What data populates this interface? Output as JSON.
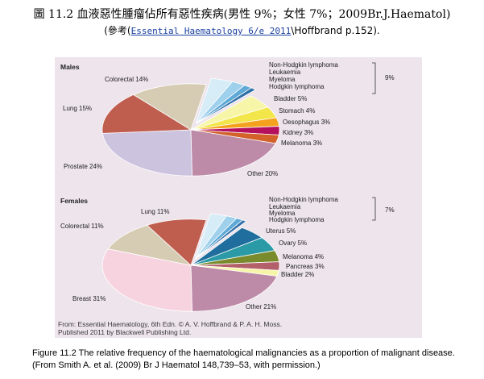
{
  "header": {
    "title": "圖 11.2 血液惡性腫瘤佔所有惡性疾病(男性 9%；女性 7%；2009Br.J.Haematol)",
    "ref_prefix": "(參考(",
    "ref_link": "Essential Haematology 6/e 2011",
    "ref_suffix": "\\Hoffbrand p.152)."
  },
  "source_note": {
    "line1": "From: Essential Haematology, 6th Edn. © A. V. Hoffbrand & P. A. H. Moss.",
    "line2": "Published 2011 by Blackwell Publishing Ltd."
  },
  "caption": {
    "line1": "Figure 11.2 The relative frequency of the haematological malignancies as a proportion of malignant disease.",
    "line2": "(From Smith A. et al. (2009) Br J Haematol 148,739–53, with permission.)"
  },
  "chart_data": [
    {
      "type": "pie",
      "title": "Males",
      "bracket_label": "9%",
      "slices": [
        {
          "label": "Non-Hodgkin lymphoma",
          "value": 4,
          "color": "#d6ecf7"
        },
        {
          "label": "Leukaemia",
          "value": 2.5,
          "color": "#9fd0ec"
        },
        {
          "label": "Myeloma",
          "value": 1.5,
          "color": "#5ea9d6"
        },
        {
          "label": "Hodgkin lymphoma",
          "value": 1,
          "color": "#2f6fa8"
        },
        {
          "label": "Bladder 5%",
          "value": 5,
          "color": "#f7f5a8"
        },
        {
          "label": "Stomach 4%",
          "value": 4,
          "color": "#f2e64a"
        },
        {
          "label": "Oesophagus 3%",
          "value": 3,
          "color": "#f4a21d"
        },
        {
          "label": "Kidney 3%",
          "value": 3,
          "color": "#b4105d"
        },
        {
          "label": "Melanoma 3%",
          "value": 3,
          "color": "#d2612a"
        },
        {
          "label": "Other 20%",
          "value": 20,
          "color": "#bd8aa8"
        },
        {
          "label": "Prostate 24%",
          "value": 24,
          "color": "#ccc3df"
        },
        {
          "label": "Lung 15%",
          "value": 15,
          "color": "#bf5e4e"
        },
        {
          "label": "Colorectal 14%",
          "value": 14,
          "color": "#d6ccb4"
        }
      ]
    },
    {
      "type": "pie",
      "title": "Females",
      "bracket_label": "7%",
      "slices": [
        {
          "label": "Non-Hodgkin lymphoma",
          "value": 3,
          "color": "#d6ecf7"
        },
        {
          "label": "Leukaemia",
          "value": 2,
          "color": "#9fd0ec"
        },
        {
          "label": "Myeloma",
          "value": 1.2,
          "color": "#5ea9d6"
        },
        {
          "label": "Hodgkin lymphoma",
          "value": 0.8,
          "color": "#2f6fa8"
        },
        {
          "label": "Uterus 5%",
          "value": 5,
          "color": "#1f6e9e"
        },
        {
          "label": "Ovary 5%",
          "value": 5,
          "color": "#2a9aa6"
        },
        {
          "label": "Melanoma 4%",
          "value": 4,
          "color": "#7a8b2e"
        },
        {
          "label": "Pancreas 3%",
          "value": 3,
          "color": "#b3606b"
        },
        {
          "label": "Bladder 2%",
          "value": 2,
          "color": "#f7f5a8"
        },
        {
          "label": "Other 21%",
          "value": 21,
          "color": "#bd8aa8"
        },
        {
          "label": "Breast 31%",
          "value": 31,
          "color": "#f7d3e0"
        },
        {
          "label": "Colorectal 11%",
          "value": 11,
          "color": "#d6ccb4"
        },
        {
          "label": "Lung 11%",
          "value": 11,
          "color": "#bf5e4e"
        }
      ]
    }
  ]
}
